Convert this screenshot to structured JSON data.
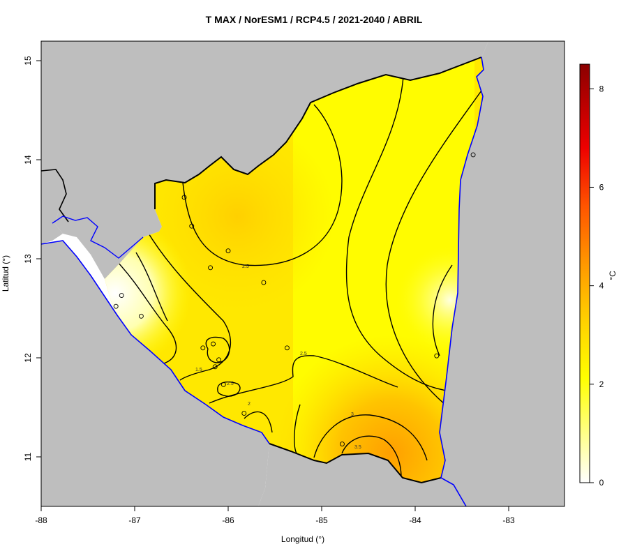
{
  "title": "T MAX / NorESM1 / RCP4.5 / 2021-2040 / ABRIL",
  "xlabel": "Longitud (°)",
  "ylabel": "Latitud (°)",
  "x_ticks": [
    "-88",
    "-87",
    "-86",
    "-85",
    "-84",
    "-83"
  ],
  "y_ticks": [
    "11",
    "12",
    "13",
    "14",
    "15"
  ],
  "colorbar": {
    "unit": "°C",
    "ticks": [
      "0",
      "2",
      "4",
      "6",
      "8"
    ],
    "range": [
      0,
      8.5
    ],
    "colors": [
      "#ffffff",
      "#ffff80",
      "#ffff00",
      "#ffd000",
      "#ff9900",
      "#ff4400",
      "#ee0000",
      "#8b0000"
    ]
  },
  "contour_labels": [
    "2.5",
    "1.5",
    "2.5",
    "2",
    "2.5",
    "3",
    "3.5"
  ],
  "colors": {
    "land_outside": "#bebebe",
    "country_border": "#000000",
    "coastline": "#0000ff"
  },
  "stations": [
    {
      "lon": -86.47,
      "lat": 13.62
    },
    {
      "lon": -86.39,
      "lat": 13.33
    },
    {
      "lon": -86.0,
      "lat": 13.08
    },
    {
      "lon": -86.19,
      "lat": 12.91
    },
    {
      "lon": -85.62,
      "lat": 12.76
    },
    {
      "lon": -87.14,
      "lat": 12.63
    },
    {
      "lon": -87.2,
      "lat": 12.52
    },
    {
      "lon": -86.93,
      "lat": 12.42
    },
    {
      "lon": -86.16,
      "lat": 12.14
    },
    {
      "lon": -86.27,
      "lat": 12.1
    },
    {
      "lon": -85.37,
      "lat": 12.1
    },
    {
      "lon": -86.1,
      "lat": 11.98
    },
    {
      "lon": -86.14,
      "lat": 11.91
    },
    {
      "lon": -83.77,
      "lat": 12.02
    },
    {
      "lon": -86.05,
      "lat": 11.73
    },
    {
      "lon": -85.83,
      "lat": 11.44
    },
    {
      "lon": -84.78,
      "lat": 11.13
    },
    {
      "lon": -83.38,
      "lat": 14.05
    }
  ]
}
